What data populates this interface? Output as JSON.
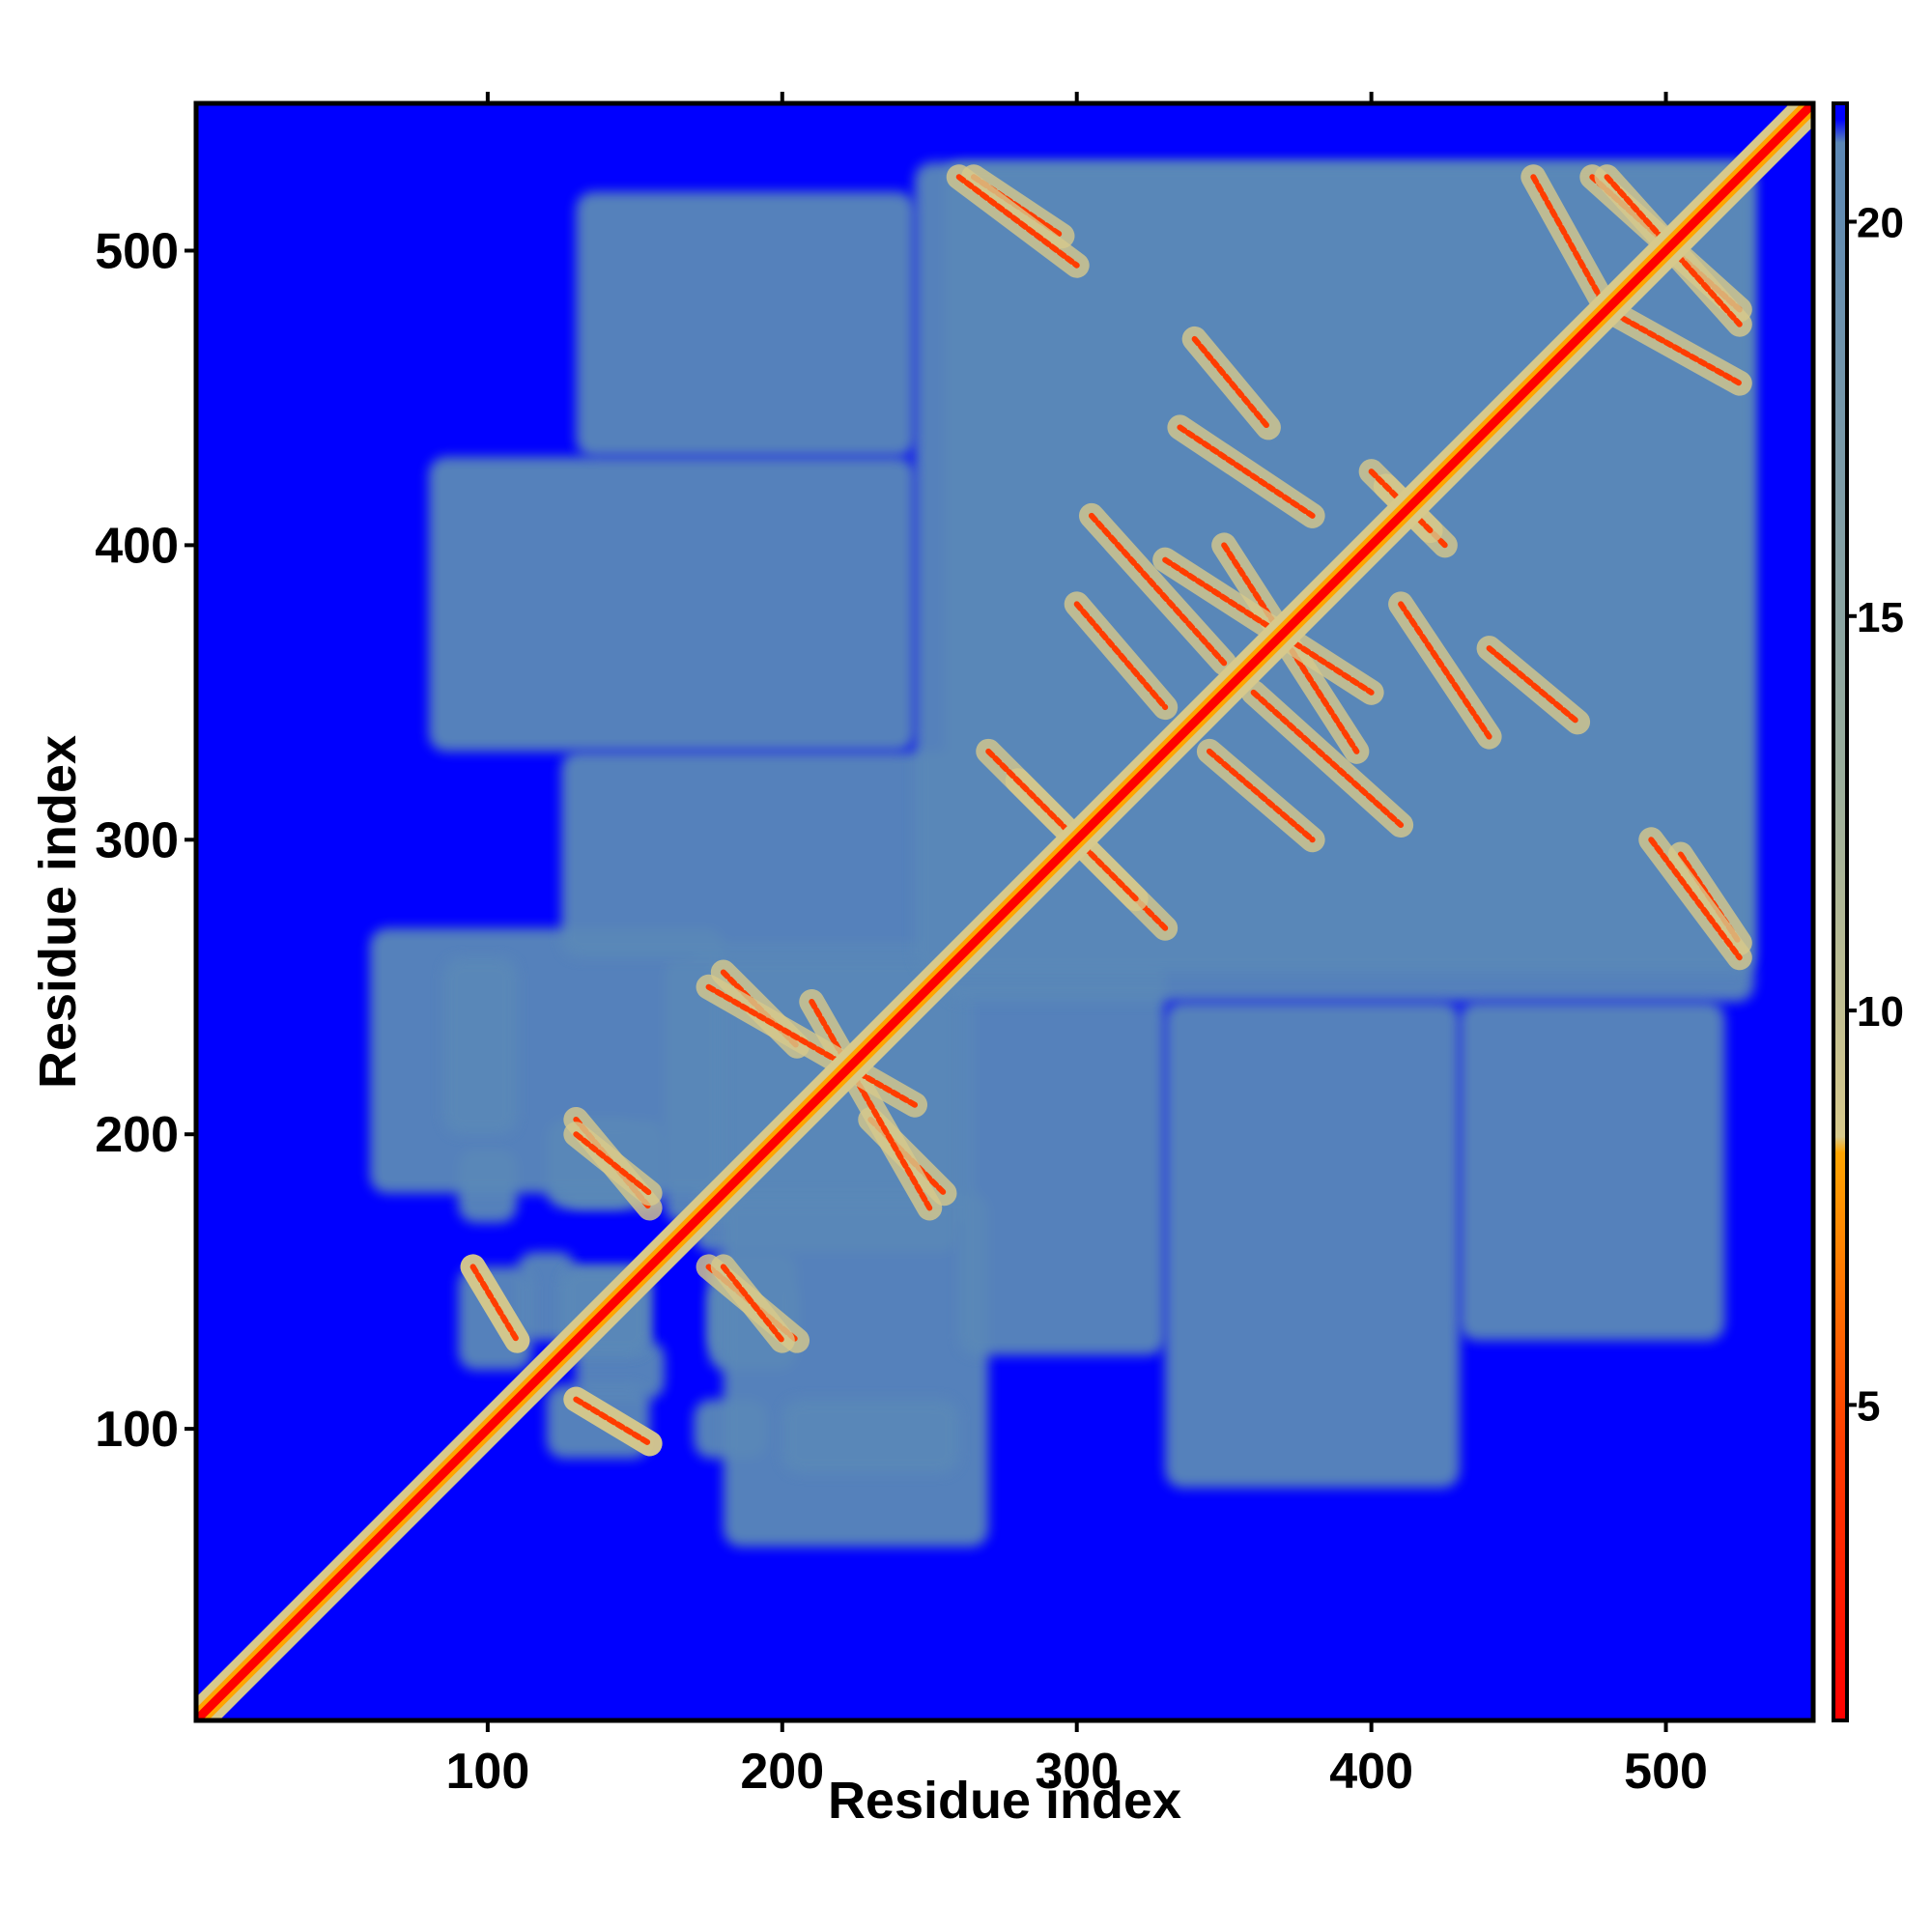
{
  "chart_data": {
    "type": "heatmap",
    "title": "",
    "xlabel": "Residue index",
    "ylabel": "Residue index",
    "xlim": [
      1,
      550
    ],
    "ylim": [
      1,
      550
    ],
    "x_ticks": [
      100,
      200,
      300,
      400,
      500
    ],
    "y_ticks": [
      100,
      200,
      300,
      400,
      500
    ],
    "colorbar": {
      "range": [
        1,
        21.5
      ],
      "ticks": [
        5,
        10,
        15,
        20
      ],
      "stops": [
        {
          "value": 1,
          "color": "#ff0000"
        },
        {
          "value": 4.5,
          "color": "#ff3c00"
        },
        {
          "value": 8.2,
          "color": "#ffa500"
        },
        {
          "value": 8.4,
          "color": "#d7c98c"
        },
        {
          "value": 13,
          "color": "#9aae9c"
        },
        {
          "value": 21,
          "color": "#5b87b4"
        },
        {
          "value": 21.3,
          "color": "#0000ff"
        }
      ]
    },
    "background_value": 21.5,
    "background_color": "#0000ff",
    "contact_color": "#5a88b8",
    "diagonal_color": "#ff0000",
    "grid": false,
    "legend": "colorbar right",
    "contact_patches": [
      {
        "x": [
          90,
          110
        ],
        "y": [
          170,
          195
        ]
      },
      {
        "x": [
          110,
          130
        ],
        "y": [
          130,
          160
        ]
      },
      {
        "x": [
          125,
          150
        ],
        "y": [
          175,
          205
        ]
      },
      {
        "x": [
          120,
          155
        ],
        "y": [
          90,
          115
        ]
      },
      {
        "x": [
          125,
          155
        ],
        "y": [
          125,
          155
        ]
      },
      {
        "x": [
          170,
          260
        ],
        "y": [
          160,
          265
        ]
      },
      {
        "x": [
          175,
          205
        ],
        "y": [
          120,
          160
        ]
      },
      {
        "x": [
          180,
          270
        ],
        "y": [
          60,
          180
        ]
      },
      {
        "x": [
          200,
          260
        ],
        "y": [
          85,
          110
        ]
      },
      {
        "x": [
          125,
          260
        ],
        "y": [
          260,
          330
        ]
      },
      {
        "x": [
          255,
          530
        ],
        "y": [
          245,
          530
        ]
      },
      {
        "x": [
          330,
          430
        ],
        "y": [
          80,
          245
        ]
      },
      {
        "x": [
          430,
          520
        ],
        "y": [
          130,
          245
        ]
      }
    ],
    "off_diagonal_streaks": [
      {
        "x": [
          265,
          295
        ],
        "y": [
          505,
          525
        ]
      },
      {
        "x": [
          340,
          365
        ],
        "y": [
          440,
          470
        ]
      },
      {
        "x": [
          350,
          395
        ],
        "y": [
          330,
          400
        ]
      },
      {
        "x": [
          300,
          330
        ],
        "y": [
          345,
          380
        ]
      },
      {
        "x": [
          280,
          330
        ],
        "y": [
          270,
          320
        ]
      },
      {
        "x": [
          360,
          410
        ],
        "y": [
          305,
          350
        ]
      },
      {
        "x": [
          405,
          425
        ],
        "y": [
          400,
          420
        ]
      },
      {
        "x": [
          410,
          440
        ],
        "y": [
          335,
          380
        ]
      },
      {
        "x": [
          480,
          525
        ],
        "y": [
          455,
          480
        ]
      },
      {
        "x": [
          475,
          525
        ],
        "y": [
          480,
          525
        ]
      },
      {
        "x": [
          495,
          525
        ],
        "y": [
          260,
          300
        ]
      },
      {
        "x": [
          175,
          205
        ],
        "y": [
          130,
          155
        ]
      },
      {
        "x": [
          95,
          110
        ],
        "y": [
          130,
          155
        ]
      },
      {
        "x": [
          130,
          155
        ],
        "y": [
          95,
          110
        ]
      },
      {
        "x": [
          130,
          155
        ],
        "y": [
          180,
          200
        ]
      },
      {
        "x": [
          180,
          205
        ],
        "y": [
          230,
          255
        ]
      },
      {
        "x": [
          210,
          250
        ],
        "y": [
          175,
          245
        ]
      }
    ]
  }
}
